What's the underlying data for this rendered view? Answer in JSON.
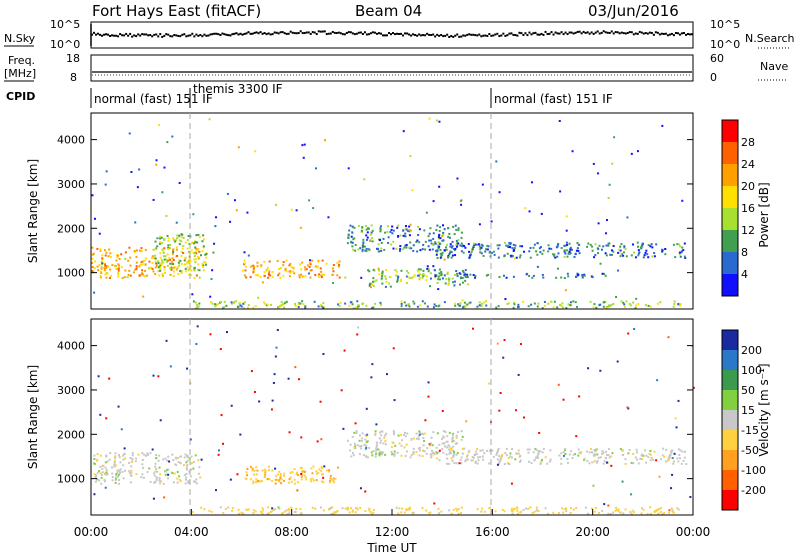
{
  "header": {
    "station": "Fort Hays East (fitACF)",
    "beam": "Beam 04",
    "date": "03/Jun/2016"
  },
  "panels_top": {
    "nsky_label": "N.Sky",
    "nsearch_label": "N.Search",
    "n_ticks_left": [
      "10^5",
      "10^0"
    ],
    "n_ticks_right": [
      "10^5",
      "10^0"
    ],
    "freq_label_1": "Freq.",
    "freq_label_2": "[MHz]",
    "freq_ticks": [
      "18",
      "8"
    ],
    "nave_label": "Nave",
    "nave_ticks": [
      "60",
      "0"
    ],
    "cpid_label": "CPID",
    "cpid_segments": [
      {
        "label": "normal (fast) 151 IF",
        "start_hour": 0.0
      },
      {
        "label": "themis 3300 IF",
        "start_hour": 4.0
      },
      {
        "label": "normal (fast) 151 IF",
        "start_hour": 16.0
      }
    ]
  },
  "chart_data": [
    {
      "type": "heatmap",
      "name": "power",
      "ylabel": "Slant Range [km]",
      "yticks": [
        "4000",
        "3000",
        "2000",
        "1000"
      ],
      "ylim": [
        180,
        4600
      ],
      "xlim": [
        0,
        24
      ],
      "colorbar_label": "Power [dB]",
      "colorbar_ticks": [
        "28",
        "24",
        "20",
        "16",
        "12",
        "8",
        "4"
      ],
      "colorbar_colors": [
        "#ff0000",
        "#ff6000",
        "#ffa000",
        "#ffe000",
        "#a8e030",
        "#40a050",
        "#2a6ad0",
        "#1010ff"
      ],
      "colorbar_range": [
        0,
        32
      ],
      "scatter_regions": [
        {
          "t0": 0.0,
          "t1": 4.3,
          "r0": 900,
          "r1": 1600,
          "level": 21
        },
        {
          "t0": 2.5,
          "t1": 4.6,
          "r0": 1050,
          "r1": 1900,
          "level": 14
        },
        {
          "t0": 6.0,
          "t1": 9.9,
          "r0": 900,
          "r1": 1300,
          "level": 22
        },
        {
          "t0": 10.2,
          "t1": 14.8,
          "r0": 1500,
          "r1": 2100,
          "level": 8
        },
        {
          "t0": 11.0,
          "t1": 15.0,
          "r0": 700,
          "r1": 1100,
          "level": 12
        },
        {
          "t0": 13.5,
          "t1": 23.8,
          "r0": 1350,
          "r1": 1700,
          "level": 7
        },
        {
          "t0": 13.5,
          "t1": 20.5,
          "r0": 900,
          "r1": 1000,
          "level": 6
        },
        {
          "t0": 4.0,
          "t1": 23.5,
          "r0": 220,
          "r1": 380,
          "level": 12
        }
      ]
    },
    {
      "type": "heatmap",
      "name": "velocity",
      "ylabel": "Slant Range [km]",
      "yticks": [
        "4000",
        "3000",
        "2000",
        "1000"
      ],
      "ylim": [
        180,
        4600
      ],
      "xlim": [
        0,
        24
      ],
      "xlabel": "Time UT",
      "xticks": [
        "00:00",
        "04:00",
        "08:00",
        "12:00",
        "16:00",
        "20:00",
        "00:00"
      ],
      "colorbar_label": "Velocity [m s⁻¹]",
      "colorbar_ticks": [
        "200",
        "100",
        "50",
        "15",
        "-15",
        "-50",
        "-100",
        "-200"
      ],
      "colorbar_colors": [
        "#1a2aa0",
        "#2a78c8",
        "#3c9a50",
        "#80d040",
        "#c8c8c8",
        "#ffd040",
        "#ffa020",
        "#ff6000",
        "#ff0000"
      ],
      "scatter_regions": [
        {
          "t0": 0.0,
          "t1": 4.3,
          "r0": 900,
          "r1": 1600,
          "level": 0
        },
        {
          "t0": 6.0,
          "t1": 9.9,
          "r0": 900,
          "r1": 1300,
          "level": -40
        },
        {
          "t0": 10.2,
          "t1": 14.8,
          "r0": 1500,
          "r1": 2100,
          "level": 0
        },
        {
          "t0": 13.5,
          "t1": 23.8,
          "r0": 1350,
          "r1": 1700,
          "level": 0
        },
        {
          "t0": 4.0,
          "t1": 23.5,
          "r0": 220,
          "r1": 380,
          "level": -30
        }
      ]
    }
  ]
}
